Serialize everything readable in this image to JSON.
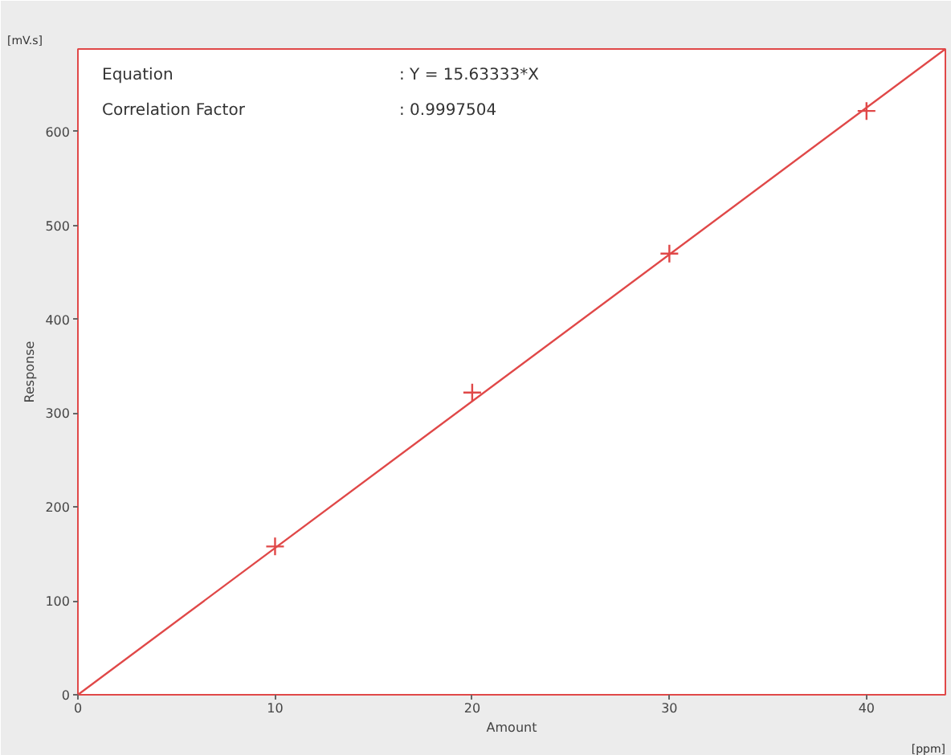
{
  "chart_data": {
    "type": "scatter",
    "xlabel": "Amount",
    "ylabel": "Response",
    "annotations": [
      "Equation",
      ": Y = 15.63333*X",
      "Correlation Factor",
      ": 0.9997504",
      "[mV.s]",
      "[ppm]"
    ],
    "x": [
      10,
      20,
      30,
      40
    ],
    "series": [
      {
        "color": "#e04848",
        "values": [
          158,
          322,
          470,
          622
        ],
        "marker": "cross"
      },
      {
        "type": "line",
        "color": "#e04848",
        "x": [
          0,
          44
        ],
        "values": [
          0,
          688
        ],
        "line_style": "solid"
      }
    ],
    "xlim": [
      0,
      44
    ],
    "ylim": [
      0,
      688
    ],
    "xticks": [
      0,
      10,
      20,
      30,
      40
    ],
    "yticks": [
      0,
      100,
      200,
      300,
      400,
      500,
      600
    ],
    "grid": false
  }
}
